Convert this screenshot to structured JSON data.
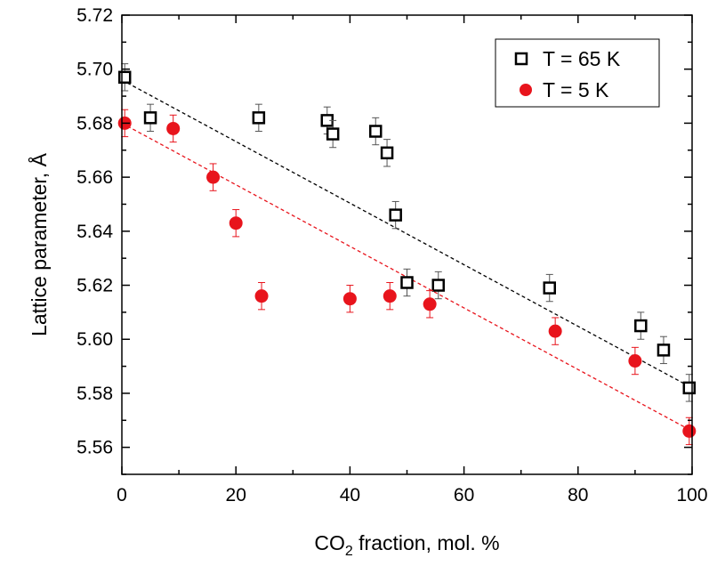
{
  "chart_data": {
    "type": "scatter",
    "xlabel_main": "CO",
    "xlabel_sub": "2",
    "xlabel_rest": " fraction, mol. %",
    "ylabel": "Lattice parameter, Å",
    "xlim": [
      0,
      100
    ],
    "ylim": [
      5.55,
      5.72
    ],
    "x_ticks": [
      0,
      20,
      40,
      60,
      80,
      100
    ],
    "y_ticks": [
      5.56,
      5.58,
      5.6,
      5.62,
      5.64,
      5.66,
      5.68,
      5.7,
      5.72
    ],
    "x_tick_labels": [
      "0",
      "20",
      "40",
      "60",
      "80",
      "100"
    ],
    "y_tick_labels": [
      "5.56",
      "5.58",
      "5.60",
      "5.62",
      "5.64",
      "5.66",
      "5.68",
      "5.70",
      "5.72"
    ],
    "grid": false,
    "legend_position": "top-right",
    "series": [
      {
        "name": "T = 65 K",
        "marker": "open-square",
        "color": "#000000",
        "error": 0.005,
        "x": [
          0.5,
          5,
          24,
          36,
          37,
          44.5,
          46.5,
          48,
          50,
          55.5,
          75,
          91,
          95,
          99.5
        ],
        "y": [
          5.697,
          5.682,
          5.682,
          5.681,
          5.676,
          5.677,
          5.669,
          5.646,
          5.621,
          5.62,
          5.619,
          5.605,
          5.596,
          5.582
        ],
        "fit_line": {
          "x": [
            0,
            100
          ],
          "y": [
            5.696,
            5.582
          ],
          "style": "dashed",
          "color": "#000000"
        }
      },
      {
        "name": "T = 5 K",
        "marker": "filled-circle",
        "color": "#e8141c",
        "error": 0.005,
        "x": [
          0.5,
          9,
          16,
          20,
          24.5,
          40,
          47,
          54,
          76,
          90,
          99.5
        ],
        "y": [
          5.68,
          5.678,
          5.66,
          5.643,
          5.616,
          5.615,
          5.616,
          5.613,
          5.603,
          5.592,
          5.566
        ],
        "fit_line": {
          "x": [
            0,
            100
          ],
          "y": [
            5.68,
            5.566
          ],
          "style": "dashed",
          "color": "#e8141c"
        }
      }
    ]
  }
}
